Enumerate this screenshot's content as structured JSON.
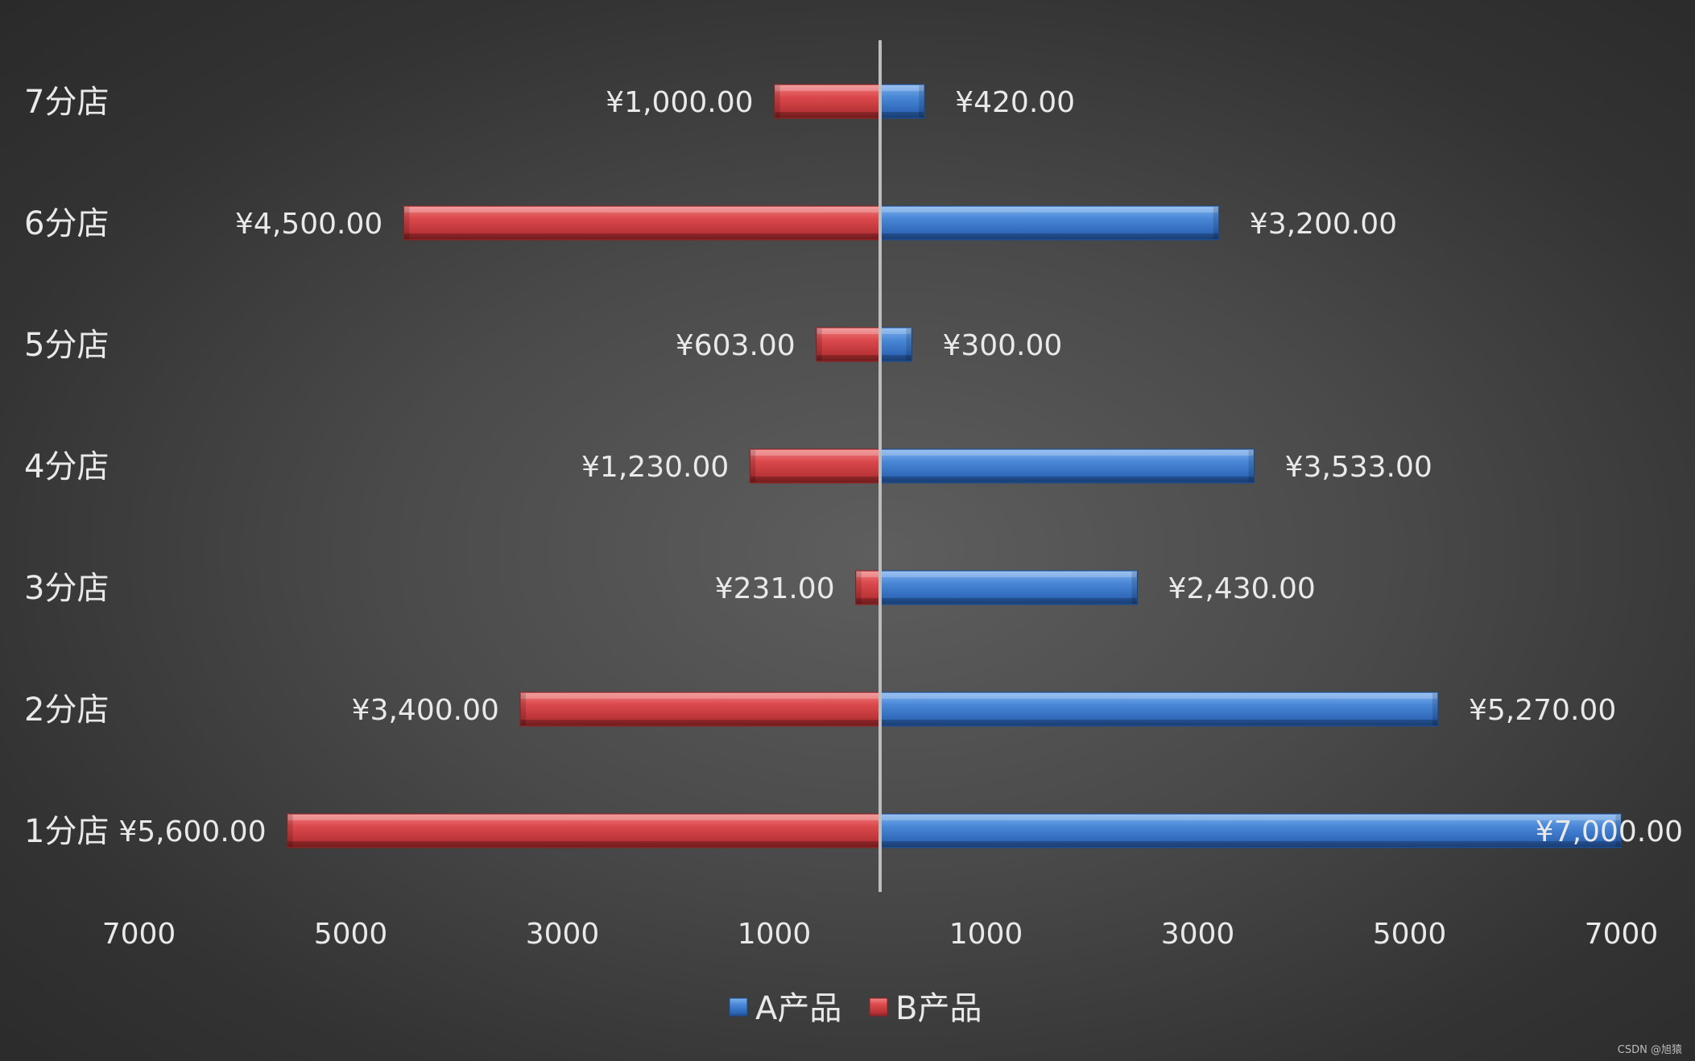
{
  "chart_data": {
    "type": "bar",
    "orientation": "horizontal-butterfly",
    "categories": [
      "7分店",
      "6分店",
      "5分店",
      "4分店",
      "3分店",
      "2分店",
      "1分店"
    ],
    "series": [
      {
        "name": "A产品",
        "color": "#4a86d4",
        "side": "right",
        "values": [
          420,
          3200,
          300,
          3533,
          2430,
          5270,
          7000
        ],
        "labels": [
          "¥420.00",
          "¥3,200.00",
          "¥300.00",
          "¥3,533.00",
          "¥2,430.00",
          "¥5,270.00",
          "¥7,000.00"
        ]
      },
      {
        "name": "B产品",
        "color": "#d94a4c",
        "side": "left",
        "values": [
          1000,
          4500,
          603,
          1230,
          231,
          3400,
          5600
        ],
        "labels": [
          "¥1,000.00",
          "¥4,500.00",
          "¥603.00",
          "¥1,230.00",
          "¥231.00",
          "¥3,400.00",
          "¥5,600.00"
        ]
      }
    ],
    "xlim": [
      -7000,
      7000
    ],
    "x_ticks": [
      "7000",
      "5000",
      "3000",
      "1000",
      "1000",
      "3000",
      "5000",
      "7000"
    ],
    "legend_position": "bottom",
    "grid": false
  },
  "watermark": "CSDN @旭猿"
}
